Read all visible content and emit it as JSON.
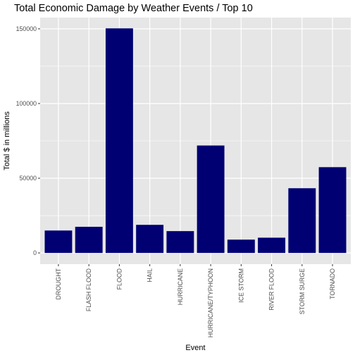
{
  "chart_data": {
    "type": "bar",
    "title": "Total Economic Damage by Weather Events / Top 10",
    "xlabel": "Event",
    "ylabel": "Total $ in millions",
    "categories": [
      "DROUGHT",
      "FLASH FLOOD",
      "FLOOD",
      "HAIL",
      "HURRICANE",
      "HURRICANE/TYPHOON",
      "ICE STORM",
      "RIVER FLOOD",
      "STORM SURGE",
      "TORNADO"
    ],
    "values": [
      15000,
      17500,
      150300,
      18800,
      14600,
      71900,
      8900,
      10200,
      43300,
      57400
    ],
    "yticks": [
      0,
      50000,
      100000,
      150000
    ],
    "ytick_labels": [
      "0",
      "50000",
      "100000",
      "150000"
    ],
    "ylim": [
      -7500,
      157500
    ],
    "grid": true,
    "bar_color": "#000073",
    "panel_color": "#e6e6e6",
    "grid_color": "#ffffff"
  }
}
